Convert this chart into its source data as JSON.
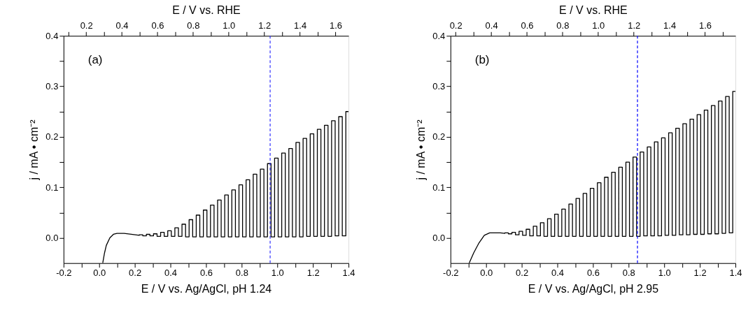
{
  "chart_data": [
    {
      "type": "line",
      "annotations": [
        "(a)"
      ],
      "xlabel": "E / V vs. Ag/AgCl, pH 1.24",
      "x2label": "E / V vs. RHE",
      "ylabel": "j / mA • cm⁻²",
      "xlim": [
        -0.2,
        1.4
      ],
      "ylim": [
        -0.05,
        0.4
      ],
      "x2lim": [
        0.073,
        1.673
      ],
      "xticks": [
        {
          "value": -0.2,
          "label": "-0.2"
        },
        {
          "value": -0.1,
          "label": null
        },
        {
          "value": 0,
          "label": "0.0"
        },
        {
          "value": 0.1,
          "label": null
        },
        {
          "value": 0.2,
          "label": "0.2"
        },
        {
          "value": 0.3,
          "label": null
        },
        {
          "value": 0.4,
          "label": "0.4"
        },
        {
          "value": 0.5,
          "label": null
        },
        {
          "value": 0.6,
          "label": "0.6"
        },
        {
          "value": 0.7,
          "label": null
        },
        {
          "value": 0.8,
          "label": "0.8"
        },
        {
          "value": 0.9,
          "label": null
        },
        {
          "value": 1.0,
          "label": "1.0"
        },
        {
          "value": 1.1,
          "label": null
        },
        {
          "value": 1.2,
          "label": "1.2"
        },
        {
          "value": 1.3,
          "label": null
        },
        {
          "value": 1.4,
          "label": "1.4"
        }
      ],
      "x2ticks": [
        {
          "value": 0.1,
          "label": null
        },
        {
          "value": 0.2,
          "label": "0.2"
        },
        {
          "value": 0.3,
          "label": null
        },
        {
          "value": 0.4,
          "label": "0.4"
        },
        {
          "value": 0.5,
          "label": null
        },
        {
          "value": 0.6,
          "label": "0.6"
        },
        {
          "value": 0.7,
          "label": null
        },
        {
          "value": 0.8,
          "label": "0.8"
        },
        {
          "value": 0.9,
          "label": null
        },
        {
          "value": 1.0,
          "label": "1.0"
        },
        {
          "value": 1.1,
          "label": null
        },
        {
          "value": 1.2,
          "label": "1.2"
        },
        {
          "value": 1.3,
          "label": null
        },
        {
          "value": 1.4,
          "label": "1.4"
        },
        {
          "value": 1.5,
          "label": null
        },
        {
          "value": 1.6,
          "label": "1.6"
        }
      ],
      "yticks": [
        {
          "value": 0,
          "label": "0.0"
        },
        {
          "value": 0.05,
          "label": null
        },
        {
          "value": 0.1,
          "label": "0.1"
        },
        {
          "value": 0.15,
          "label": null
        },
        {
          "value": 0.2,
          "label": "0.2"
        },
        {
          "value": 0.25,
          "label": null
        },
        {
          "value": 0.3,
          "label": "0.3"
        },
        {
          "value": 0.35,
          "label": null
        },
        {
          "value": 0.4,
          "label": "0.4"
        }
      ],
      "ref_lines": [
        {
          "axis": "x",
          "value": 0.96,
          "color": "#3333ff",
          "line_style": "dashed"
        }
      ],
      "marker": "none",
      "line_style": "solid",
      "series": [
        {
          "color": "#000000",
          "x": [
            0.02,
            0.03,
            0.04,
            0.06,
            0.08,
            0.1,
            0.14,
            0.18,
            0.225,
            0.225,
            0.245,
            0.245,
            0.265,
            0.265,
            0.285,
            0.285,
            0.305,
            0.305,
            0.325,
            0.325,
            0.345,
            0.345,
            0.365,
            0.365,
            0.385,
            0.385,
            0.405,
            0.405,
            0.425,
            0.425,
            0.445,
            0.445,
            0.465,
            0.465,
            0.485,
            0.485,
            0.505,
            0.505,
            0.525,
            0.525,
            0.545,
            0.545,
            0.565,
            0.565,
            0.585,
            0.585,
            0.605,
            0.605,
            0.625,
            0.625,
            0.645,
            0.645,
            0.665,
            0.665,
            0.685,
            0.685,
            0.705,
            0.705,
            0.725,
            0.725,
            0.745,
            0.745,
            0.765,
            0.765,
            0.785,
            0.785,
            0.805,
            0.805,
            0.825,
            0.825,
            0.845,
            0.845,
            0.865,
            0.865,
            0.885,
            0.885,
            0.905,
            0.905,
            0.925,
            0.925,
            0.945,
            0.945,
            0.965,
            0.965,
            0.985,
            0.985,
            1.005,
            1.005,
            1.025,
            1.025,
            1.045,
            1.045,
            1.065,
            1.065,
            1.085,
            1.085,
            1.105,
            1.105,
            1.125,
            1.125,
            1.145,
            1.145,
            1.165,
            1.165,
            1.185,
            1.185,
            1.205,
            1.205,
            1.225,
            1.225,
            1.245,
            1.245,
            1.265,
            1.265,
            1.285,
            1.285,
            1.305,
            1.305,
            1.325,
            1.325,
            1.345,
            1.345,
            1.365,
            1.365,
            1.385,
            1.385,
            1.4
          ],
          "values": [
            -0.05,
            -0.03,
            -0.015,
            0.0,
            0.007,
            0.009,
            0.009,
            0.007,
            0.005,
            0.006,
            0.006,
            0.004,
            0.004,
            0.007,
            0.007,
            0.004,
            0.004,
            0.008,
            0.008,
            0.003,
            0.003,
            0.011,
            0.011,
            0.003,
            0.003,
            0.014,
            0.014,
            0.003,
            0.003,
            0.02,
            0.02,
            0.003,
            0.003,
            0.027,
            0.027,
            0.002,
            0.002,
            0.036,
            0.036,
            0.002,
            0.002,
            0.045,
            0.045,
            0.002,
            0.002,
            0.055,
            0.055,
            0.002,
            0.002,
            0.065,
            0.065,
            0.002,
            0.002,
            0.075,
            0.075,
            0.002,
            0.002,
            0.085,
            0.085,
            0.002,
            0.002,
            0.095,
            0.095,
            0.002,
            0.002,
            0.105,
            0.105,
            0.002,
            0.002,
            0.115,
            0.115,
            0.002,
            0.002,
            0.126,
            0.126,
            0.002,
            0.002,
            0.136,
            0.136,
            0.002,
            0.002,
            0.147,
            0.147,
            0.002,
            0.002,
            0.158,
            0.158,
            0.002,
            0.002,
            0.168,
            0.168,
            0.002,
            0.002,
            0.177,
            0.177,
            0.002,
            0.002,
            0.189,
            0.189,
            0.002,
            0.002,
            0.197,
            0.197,
            0.003,
            0.003,
            0.206,
            0.206,
            0.003,
            0.003,
            0.215,
            0.215,
            0.003,
            0.003,
            0.223,
            0.223,
            0.003,
            0.003,
            0.232,
            0.232,
            0.004,
            0.004,
            0.24,
            0.24,
            0.004,
            0.004,
            0.25,
            0.25
          ]
        }
      ]
    },
    {
      "type": "line",
      "annotations": [
        "(b)"
      ],
      "xlabel": "E / V vs. Ag/AgCl, pH 2.95",
      "x2label": "E / V vs. RHE",
      "ylabel": "j / mA • cm⁻²",
      "xlim": [
        -0.2,
        1.4
      ],
      "ylim": [
        -0.05,
        0.4
      ],
      "x2lim": [
        0.171,
        1.771
      ],
      "xticks": [
        {
          "value": -0.2,
          "label": "-0.2"
        },
        {
          "value": -0.1,
          "label": null
        },
        {
          "value": 0,
          "label": "0.0"
        },
        {
          "value": 0.1,
          "label": null
        },
        {
          "value": 0.2,
          "label": "0.2"
        },
        {
          "value": 0.3,
          "label": null
        },
        {
          "value": 0.4,
          "label": "0.4"
        },
        {
          "value": 0.5,
          "label": null
        },
        {
          "value": 0.6,
          "label": "0.6"
        },
        {
          "value": 0.7,
          "label": null
        },
        {
          "value": 0.8,
          "label": "0.8"
        },
        {
          "value": 0.9,
          "label": null
        },
        {
          "value": 1.0,
          "label": "1.0"
        },
        {
          "value": 1.1,
          "label": null
        },
        {
          "value": 1.2,
          "label": "1.2"
        },
        {
          "value": 1.3,
          "label": null
        },
        {
          "value": 1.4,
          "label": "1.4"
        }
      ],
      "x2ticks": [
        {
          "value": 0.2,
          "label": "0.2"
        },
        {
          "value": 0.3,
          "label": null
        },
        {
          "value": 0.4,
          "label": "0.4"
        },
        {
          "value": 0.5,
          "label": null
        },
        {
          "value": 0.6,
          "label": "0.6"
        },
        {
          "value": 0.7,
          "label": null
        },
        {
          "value": 0.8,
          "label": "0.8"
        },
        {
          "value": 0.9,
          "label": null
        },
        {
          "value": 1.0,
          "label": "1.0"
        },
        {
          "value": 1.1,
          "label": null
        },
        {
          "value": 1.2,
          "label": "1.2"
        },
        {
          "value": 1.3,
          "label": null
        },
        {
          "value": 1.4,
          "label": "1.4"
        },
        {
          "value": 1.5,
          "label": null
        },
        {
          "value": 1.6,
          "label": "1.6"
        },
        {
          "value": 1.7,
          "label": null
        }
      ],
      "yticks": [
        {
          "value": 0,
          "label": "0.0"
        },
        {
          "value": 0.05,
          "label": null
        },
        {
          "value": 0.1,
          "label": "0.1"
        },
        {
          "value": 0.15,
          "label": null
        },
        {
          "value": 0.2,
          "label": "0.2"
        },
        {
          "value": 0.25,
          "label": null
        },
        {
          "value": 0.3,
          "label": "0.3"
        },
        {
          "value": 0.35,
          "label": null
        },
        {
          "value": 0.4,
          "label": "0.4"
        }
      ],
      "ref_lines": [
        {
          "axis": "x",
          "value": 0.85,
          "color": "#0000ff",
          "line_style": "dashed"
        }
      ],
      "marker": "none",
      "line_style": "solid",
      "series": [
        {
          "color": "#000000",
          "x": [
            -0.095,
            -0.07,
            -0.04,
            -0.01,
            0.02,
            0.05,
            0.08,
            0.105,
            0.105,
            0.125,
            0.125,
            0.145,
            0.145,
            0.165,
            0.165,
            0.185,
            0.185,
            0.205,
            0.205,
            0.225,
            0.225,
            0.245,
            0.245,
            0.265,
            0.265,
            0.285,
            0.285,
            0.305,
            0.305,
            0.325,
            0.325,
            0.345,
            0.345,
            0.365,
            0.365,
            0.385,
            0.385,
            0.405,
            0.405,
            0.425,
            0.425,
            0.445,
            0.445,
            0.465,
            0.465,
            0.485,
            0.485,
            0.505,
            0.505,
            0.525,
            0.525,
            0.545,
            0.545,
            0.565,
            0.565,
            0.585,
            0.585,
            0.605,
            0.605,
            0.625,
            0.625,
            0.645,
            0.645,
            0.665,
            0.665,
            0.685,
            0.685,
            0.705,
            0.705,
            0.725,
            0.725,
            0.745,
            0.745,
            0.765,
            0.765,
            0.785,
            0.785,
            0.805,
            0.805,
            0.825,
            0.825,
            0.845,
            0.845,
            0.865,
            0.865,
            0.885,
            0.885,
            0.905,
            0.905,
            0.925,
            0.925,
            0.945,
            0.945,
            0.965,
            0.965,
            0.985,
            0.985,
            1.005,
            1.005,
            1.025,
            1.025,
            1.045,
            1.045,
            1.065,
            1.065,
            1.085,
            1.085,
            1.105,
            1.105,
            1.125,
            1.125,
            1.145,
            1.145,
            1.165,
            1.165,
            1.185,
            1.185,
            1.205,
            1.205,
            1.225,
            1.225,
            1.245,
            1.245,
            1.265,
            1.265,
            1.285,
            1.285,
            1.305,
            1.305,
            1.325,
            1.325,
            1.345,
            1.345,
            1.365,
            1.365,
            1.385,
            1.385,
            1.4
          ],
          "values": [
            -0.05,
            -0.03,
            -0.01,
            0.005,
            0.01,
            0.01,
            0.01,
            0.009,
            0.01,
            0.01,
            0.008,
            0.008,
            0.011,
            0.011,
            0.006,
            0.006,
            0.013,
            0.013,
            0.005,
            0.005,
            0.017,
            0.017,
            0.004,
            0.004,
            0.023,
            0.023,
            0.004,
            0.004,
            0.03,
            0.03,
            0.003,
            0.003,
            0.038,
            0.038,
            0.003,
            0.003,
            0.047,
            0.047,
            0.003,
            0.003,
            0.057,
            0.057,
            0.003,
            0.003,
            0.067,
            0.067,
            0.003,
            0.003,
            0.078,
            0.078,
            0.003,
            0.003,
            0.088,
            0.088,
            0.003,
            0.003,
            0.098,
            0.098,
            0.003,
            0.003,
            0.109,
            0.109,
            0.003,
            0.003,
            0.12,
            0.12,
            0.003,
            0.003,
            0.13,
            0.13,
            0.003,
            0.003,
            0.14,
            0.14,
            0.003,
            0.003,
            0.15,
            0.15,
            0.003,
            0.003,
            0.16,
            0.16,
            0.003,
            0.003,
            0.17,
            0.17,
            0.004,
            0.004,
            0.18,
            0.18,
            0.004,
            0.004,
            0.19,
            0.19,
            0.004,
            0.004,
            0.198,
            0.198,
            0.005,
            0.005,
            0.208,
            0.208,
            0.005,
            0.005,
            0.217,
            0.217,
            0.006,
            0.006,
            0.226,
            0.226,
            0.006,
            0.006,
            0.235,
            0.235,
            0.007,
            0.007,
            0.244,
            0.244,
            0.007,
            0.007,
            0.253,
            0.253,
            0.008,
            0.008,
            0.262,
            0.262,
            0.008,
            0.008,
            0.271,
            0.271,
            0.009,
            0.009,
            0.28,
            0.28,
            0.01,
            0.01,
            0.29,
            0.29
          ]
        }
      ]
    }
  ]
}
